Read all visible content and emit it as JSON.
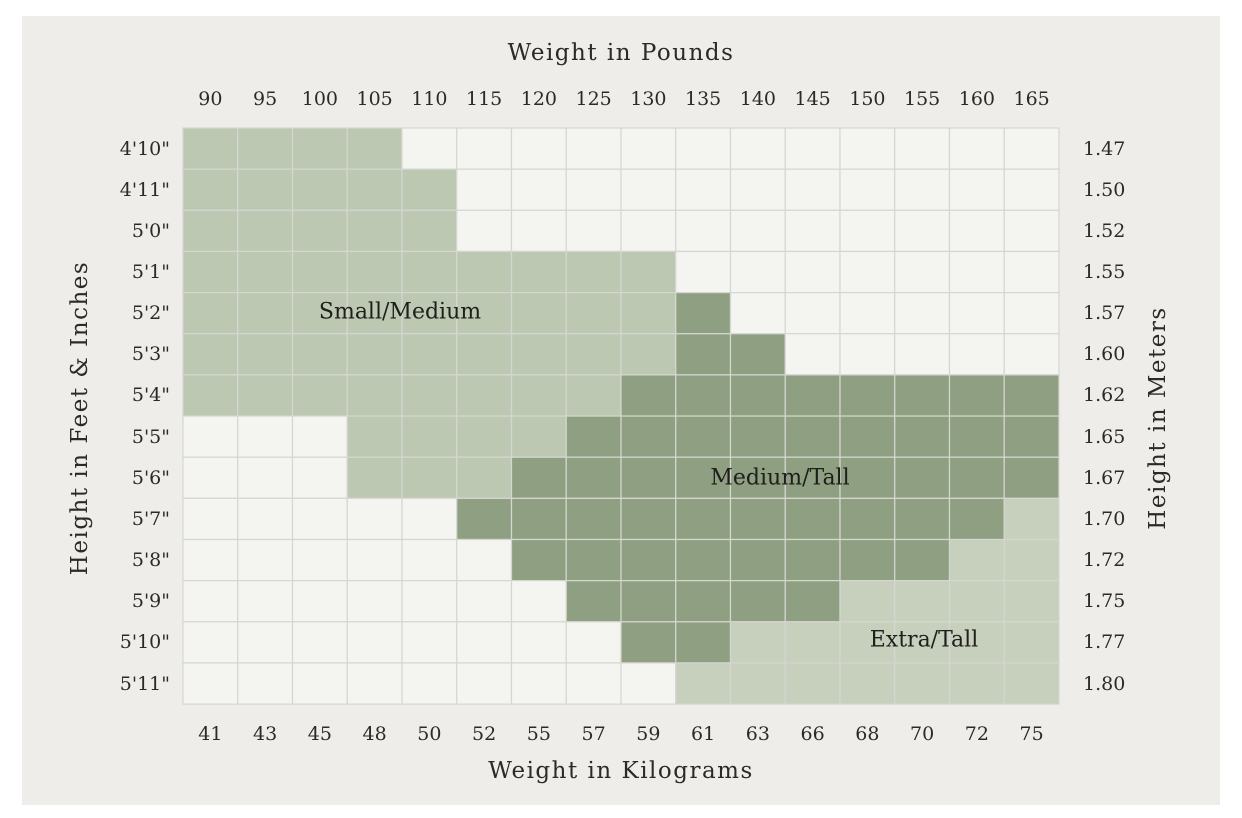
{
  "chart_data": {
    "type": "heatmap",
    "title_top": "Weight in Pounds",
    "title_bottom": "Weight in Kilograms",
    "ylabel_left": "Height in Feet & Inches",
    "ylabel_right": "Height in Meters",
    "x_pounds": [
      "90",
      "95",
      "100",
      "105",
      "110",
      "115",
      "120",
      "125",
      "130",
      "135",
      "140",
      "145",
      "150",
      "155",
      "160",
      "165"
    ],
    "x_kilograms": [
      "41",
      "43",
      "45",
      "48",
      "50",
      "52",
      "55",
      "57",
      "59",
      "61",
      "63",
      "66",
      "68",
      "70",
      "72",
      "75"
    ],
    "y_feet_inches": [
      "4'10\"",
      "4'11\"",
      "5'0\"",
      "5'1\"",
      "5'2\"",
      "5'3\"",
      "5'4\"",
      "5'5\"",
      "5'6\"",
      "5'7\"",
      "5'8\"",
      "5'9\"",
      "5'10\"",
      "5'11\""
    ],
    "y_meters": [
      "1.47",
      "1.50",
      "1.52",
      "1.55",
      "1.57",
      "1.60",
      "1.62",
      "1.65",
      "1.67",
      "1.70",
      "1.72",
      "1.75",
      "1.77",
      "1.80"
    ],
    "categories": [
      {
        "code": 0,
        "name": "",
        "color": "#f4f4f1"
      },
      {
        "code": 1,
        "name": "Small/Medium",
        "color": "#bdc8b2"
      },
      {
        "code": 2,
        "name": "Medium/Tall",
        "color": "#8fa082"
      },
      {
        "code": 3,
        "name": "Extra/Tall",
        "color": "#c7cfbd"
      }
    ],
    "rows": [
      [
        "1",
        "1",
        "1",
        "1",
        "0",
        "0",
        "0",
        "0",
        "0",
        "0",
        "0",
        "0",
        "0",
        "0",
        "0",
        "0"
      ],
      [
        "1",
        "1",
        "1",
        "1",
        "1",
        "0",
        "0",
        "0",
        "0",
        "0",
        "0",
        "0",
        "0",
        "0",
        "0",
        "0"
      ],
      [
        "1",
        "1",
        "1",
        "1",
        "1",
        "0",
        "0",
        "0",
        "0",
        "0",
        "0",
        "0",
        "0",
        "0",
        "0",
        "0"
      ],
      [
        "1",
        "1",
        "1",
        "1",
        "1",
        "1",
        "1",
        "1",
        "1",
        "0",
        "0",
        "0",
        "0",
        "0",
        "0",
        "0"
      ],
      [
        "1",
        "1",
        "1",
        "1",
        "1",
        "1",
        "1",
        "1",
        "1",
        "2",
        "0",
        "0",
        "0",
        "0",
        "0",
        "0"
      ],
      [
        "1",
        "1",
        "1",
        "1",
        "1",
        "1",
        "1",
        "1",
        "1",
        "2",
        "2",
        "0",
        "0",
        "0",
        "0",
        "0"
      ],
      [
        "1",
        "1",
        "1",
        "1",
        "1",
        "1",
        "1",
        "1",
        "2",
        "2",
        "2",
        "2",
        "2",
        "2",
        "2",
        "2"
      ],
      [
        "0",
        "0",
        "0",
        "1",
        "1",
        "1",
        "1",
        "2",
        "2",
        "2",
        "2",
        "2",
        "2",
        "2",
        "2",
        "2"
      ],
      [
        "0",
        "0",
        "0",
        "1",
        "1",
        "1",
        "2",
        "2",
        "2",
        "2",
        "2",
        "2",
        "2",
        "2",
        "2",
        "2"
      ],
      [
        "0",
        "0",
        "0",
        "0",
        "0",
        "2",
        "2",
        "2",
        "2",
        "2",
        "2",
        "2",
        "2",
        "2",
        "2",
        "3"
      ],
      [
        "0",
        "0",
        "0",
        "0",
        "0",
        "0",
        "2",
        "2",
        "2",
        "2",
        "2",
        "2",
        "2",
        "2",
        "3",
        "3"
      ],
      [
        "0",
        "0",
        "0",
        "0",
        "0",
        "0",
        "0",
        "2",
        "2",
        "2",
        "2",
        "2",
        "3",
        "3",
        "3",
        "3"
      ],
      [
        "0",
        "0",
        "0",
        "0",
        "0",
        "0",
        "0",
        "0",
        "2",
        "2",
        "3",
        "3",
        "3",
        "3",
        "3",
        "3"
      ],
      [
        "0",
        "0",
        "0",
        "0",
        "0",
        "0",
        "0",
        "0",
        "0",
        "3",
        "3",
        "3",
        "3",
        "3",
        "3",
        "3"
      ]
    ],
    "region_labels": {
      "small_medium": "Small/Medium",
      "medium_tall": "Medium/Tall",
      "extra_tall": "Extra/Tall"
    },
    "grid_line_color": "#d6d6d1"
  }
}
